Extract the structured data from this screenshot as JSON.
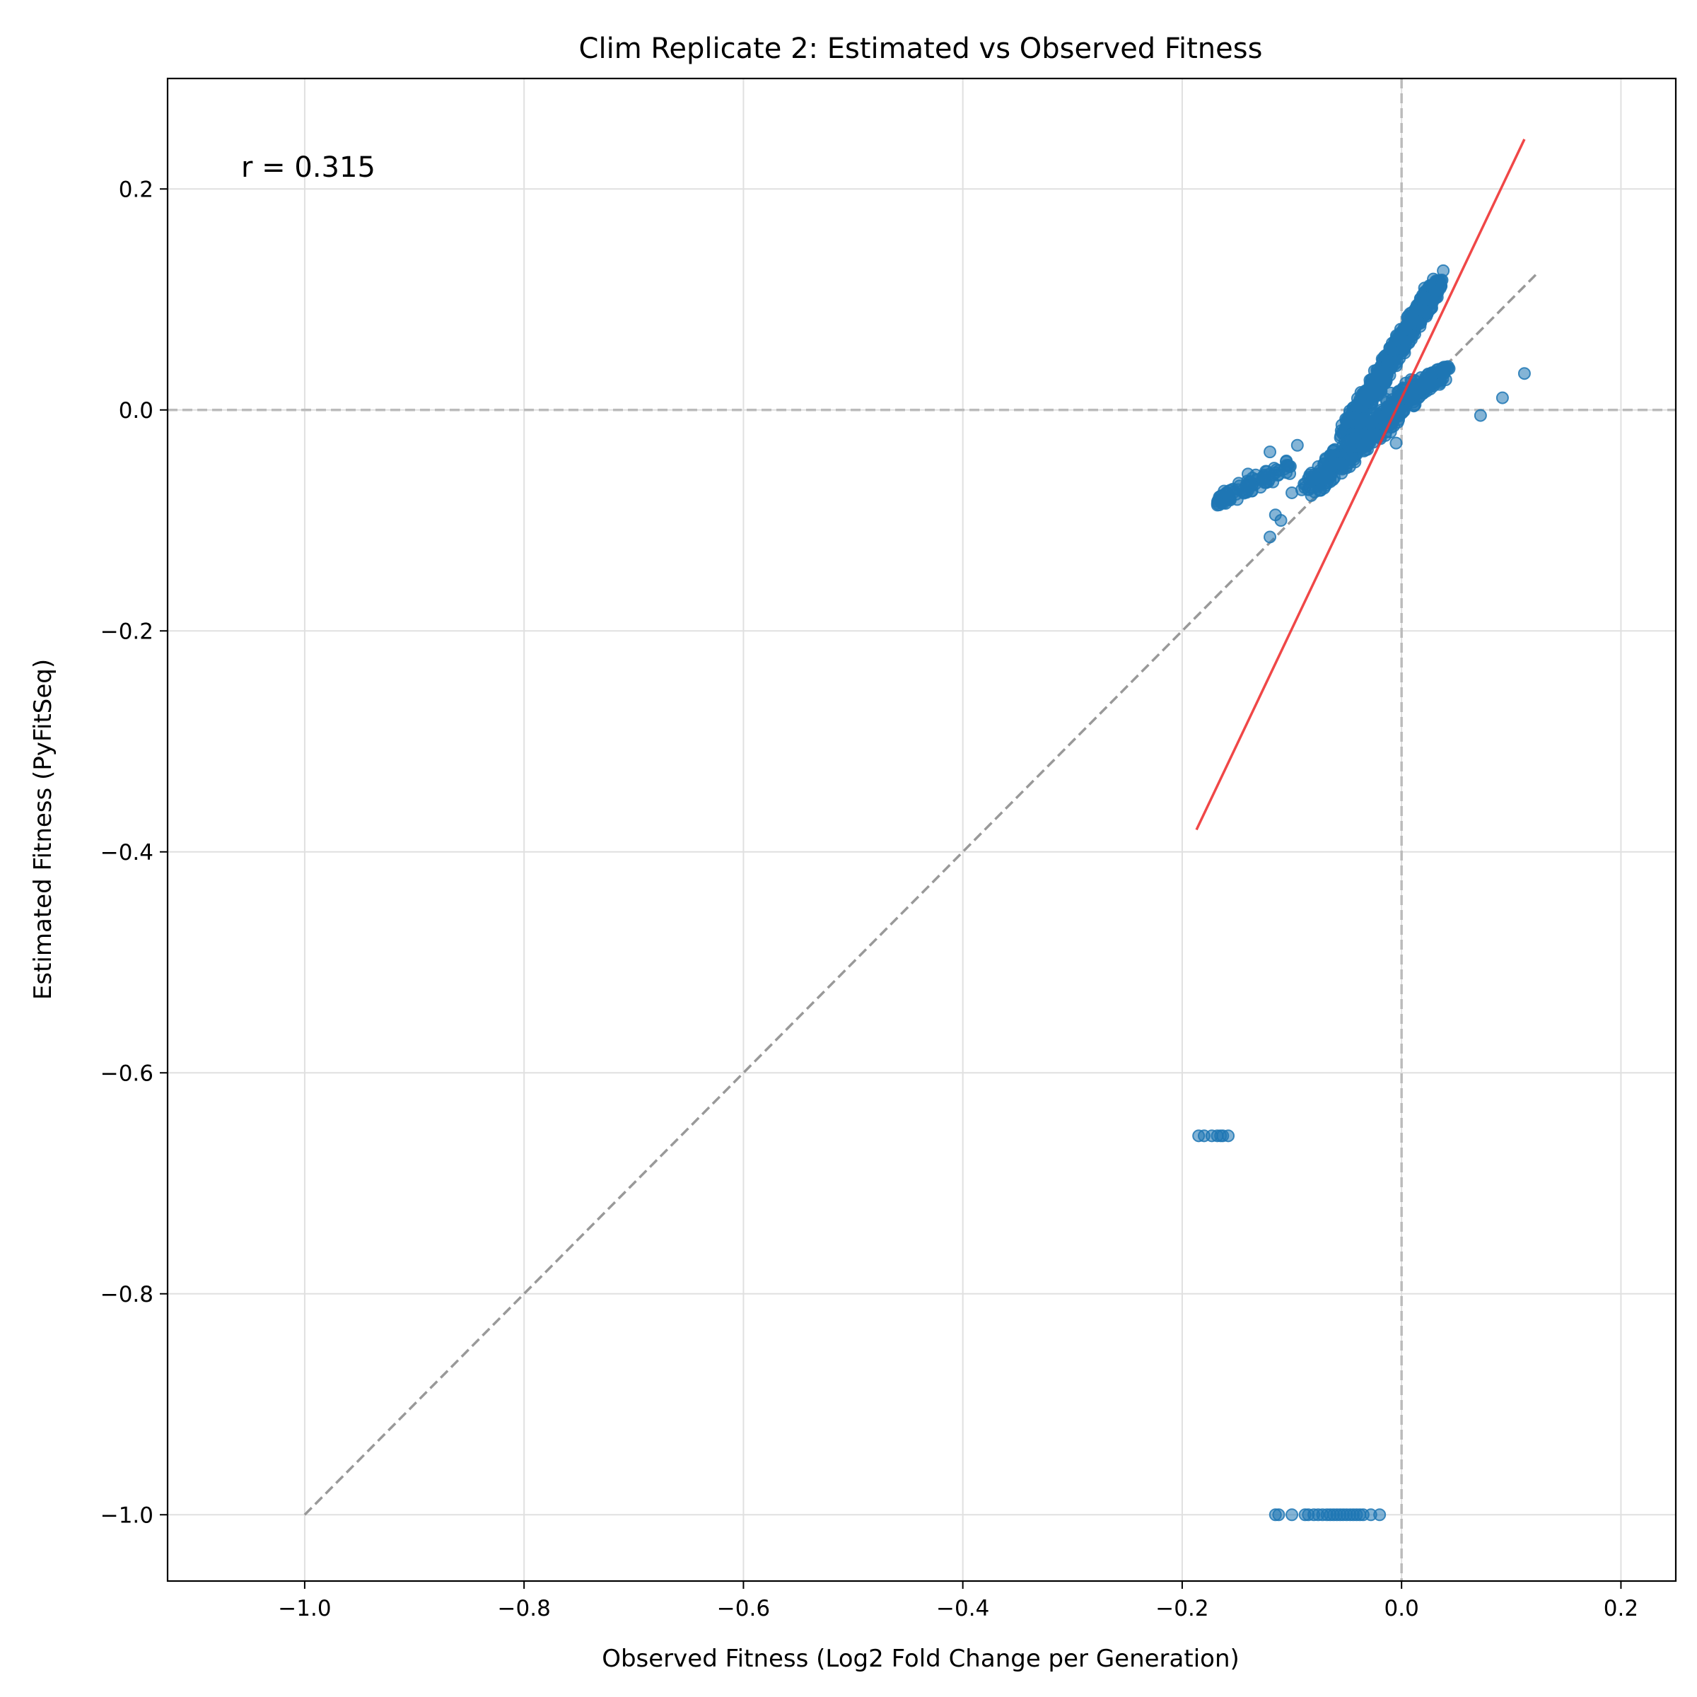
{
  "chart_data": {
    "type": "scatter",
    "title": "Clim Replicate 2: Estimated vs Observed Fitness",
    "xlabel": "Observed Fitness (Log2 Fold Change per Generation)",
    "ylabel": "Estimated Fitness (PyFitSeq)",
    "xlim": [
      -1.125,
      0.25
    ],
    "ylim": [
      -1.06,
      0.3
    ],
    "xticks": [
      -1.0,
      -0.8,
      -0.6,
      -0.4,
      -0.2,
      0.0,
      0.2
    ],
    "xtick_labels": [
      "−1.0",
      "−0.8",
      "−0.6",
      "−0.4",
      "−0.2",
      "0.0",
      "0.2"
    ],
    "yticks": [
      0.2,
      0.0,
      -0.2,
      -0.4,
      -0.6,
      -0.8,
      -1.0
    ],
    "ytick_labels": [
      "0.2",
      "0.0",
      "−0.2",
      "−0.4",
      "−0.6",
      "−0.8",
      "−1.0"
    ],
    "grid": true,
    "annotation": "r = 0.315",
    "colors": {
      "points": "#1f77b4",
      "fit_line": "#ee3333",
      "identity_line": "#999999",
      "zero_lines": "#bbbbbb",
      "grid": "#e0e0e0"
    },
    "reference_lines": {
      "identity": {
        "x": [
          -1.0,
          0.125
        ],
        "y": [
          -1.0,
          0.125
        ]
      },
      "fit": {
        "x": [
          -0.187,
          0.112
        ],
        "y": [
          -0.38,
          0.245
        ]
      },
      "zero_h": 0.0,
      "zero_v": 0.0
    },
    "clusters": [
      {
        "x": [
          -0.05,
          0.033
        ],
        "y": [
          -0.02,
          0.115
        ],
        "n": 700,
        "jitter": 0.006
      },
      {
        "x": [
          -0.085,
          -0.005
        ],
        "y": [
          -0.07,
          0.0
        ],
        "n": 350,
        "jitter": 0.008
      },
      {
        "x": [
          -0.17,
          -0.1
        ],
        "y": [
          -0.085,
          -0.05
        ],
        "n": 90,
        "jitter": 0.006
      },
      {
        "x": [
          -0.02,
          0.04
        ],
        "y": [
          -0.01,
          0.035
        ],
        "n": 150,
        "jitter": 0.006
      },
      {
        "x": [
          -0.01,
          0.04
        ],
        "y": [
          0.01,
          0.035
        ],
        "n": 60,
        "jitter": 0.006
      }
    ],
    "points": [
      {
        "x": 0.038,
        "y": 0.126
      },
      {
        "x": 0.112,
        "y": 0.033
      },
      {
        "x": 0.072,
        "y": -0.005
      },
      {
        "x": 0.092,
        "y": 0.011
      },
      {
        "x": -0.12,
        "y": -0.115
      },
      {
        "x": -0.12,
        "y": -0.038
      },
      {
        "x": -0.14,
        "y": -0.058
      },
      {
        "x": -0.138,
        "y": -0.065
      },
      {
        "x": -0.11,
        "y": -0.1
      },
      {
        "x": -0.115,
        "y": -0.095
      },
      {
        "x": -0.1,
        "y": -0.075
      },
      {
        "x": -0.095,
        "y": -0.032
      },
      {
        "x": -0.065,
        "y": -0.065
      },
      {
        "x": -0.005,
        "y": -0.03
      },
      {
        "x": -0.01,
        "y": -0.02
      },
      {
        "x": -0.185,
        "y": -0.657
      },
      {
        "x": -0.18,
        "y": -0.657
      },
      {
        "x": -0.173,
        "y": -0.657
      },
      {
        "x": -0.168,
        "y": -0.657
      },
      {
        "x": -0.163,
        "y": -0.657
      },
      {
        "x": -0.158,
        "y": -0.657
      },
      {
        "x": -0.165,
        "y": -0.657
      },
      {
        "x": -0.115,
        "y": -1.0
      },
      {
        "x": -0.112,
        "y": -1.0
      },
      {
        "x": -0.1,
        "y": -1.0
      },
      {
        "x": -0.088,
        "y": -1.0
      },
      {
        "x": -0.085,
        "y": -1.0
      },
      {
        "x": -0.08,
        "y": -1.0
      },
      {
        "x": -0.076,
        "y": -1.0
      },
      {
        "x": -0.072,
        "y": -1.0
      },
      {
        "x": -0.068,
        "y": -1.0
      },
      {
        "x": -0.065,
        "y": -1.0
      },
      {
        "x": -0.062,
        "y": -1.0
      },
      {
        "x": -0.059,
        "y": -1.0
      },
      {
        "x": -0.056,
        "y": -1.0
      },
      {
        "x": -0.053,
        "y": -1.0
      },
      {
        "x": -0.05,
        "y": -1.0
      },
      {
        "x": -0.047,
        "y": -1.0
      },
      {
        "x": -0.044,
        "y": -1.0
      },
      {
        "x": -0.041,
        "y": -1.0
      },
      {
        "x": -0.038,
        "y": -1.0
      },
      {
        "x": -0.035,
        "y": -1.0
      },
      {
        "x": -0.028,
        "y": -1.0
      },
      {
        "x": -0.02,
        "y": -1.0
      }
    ]
  }
}
